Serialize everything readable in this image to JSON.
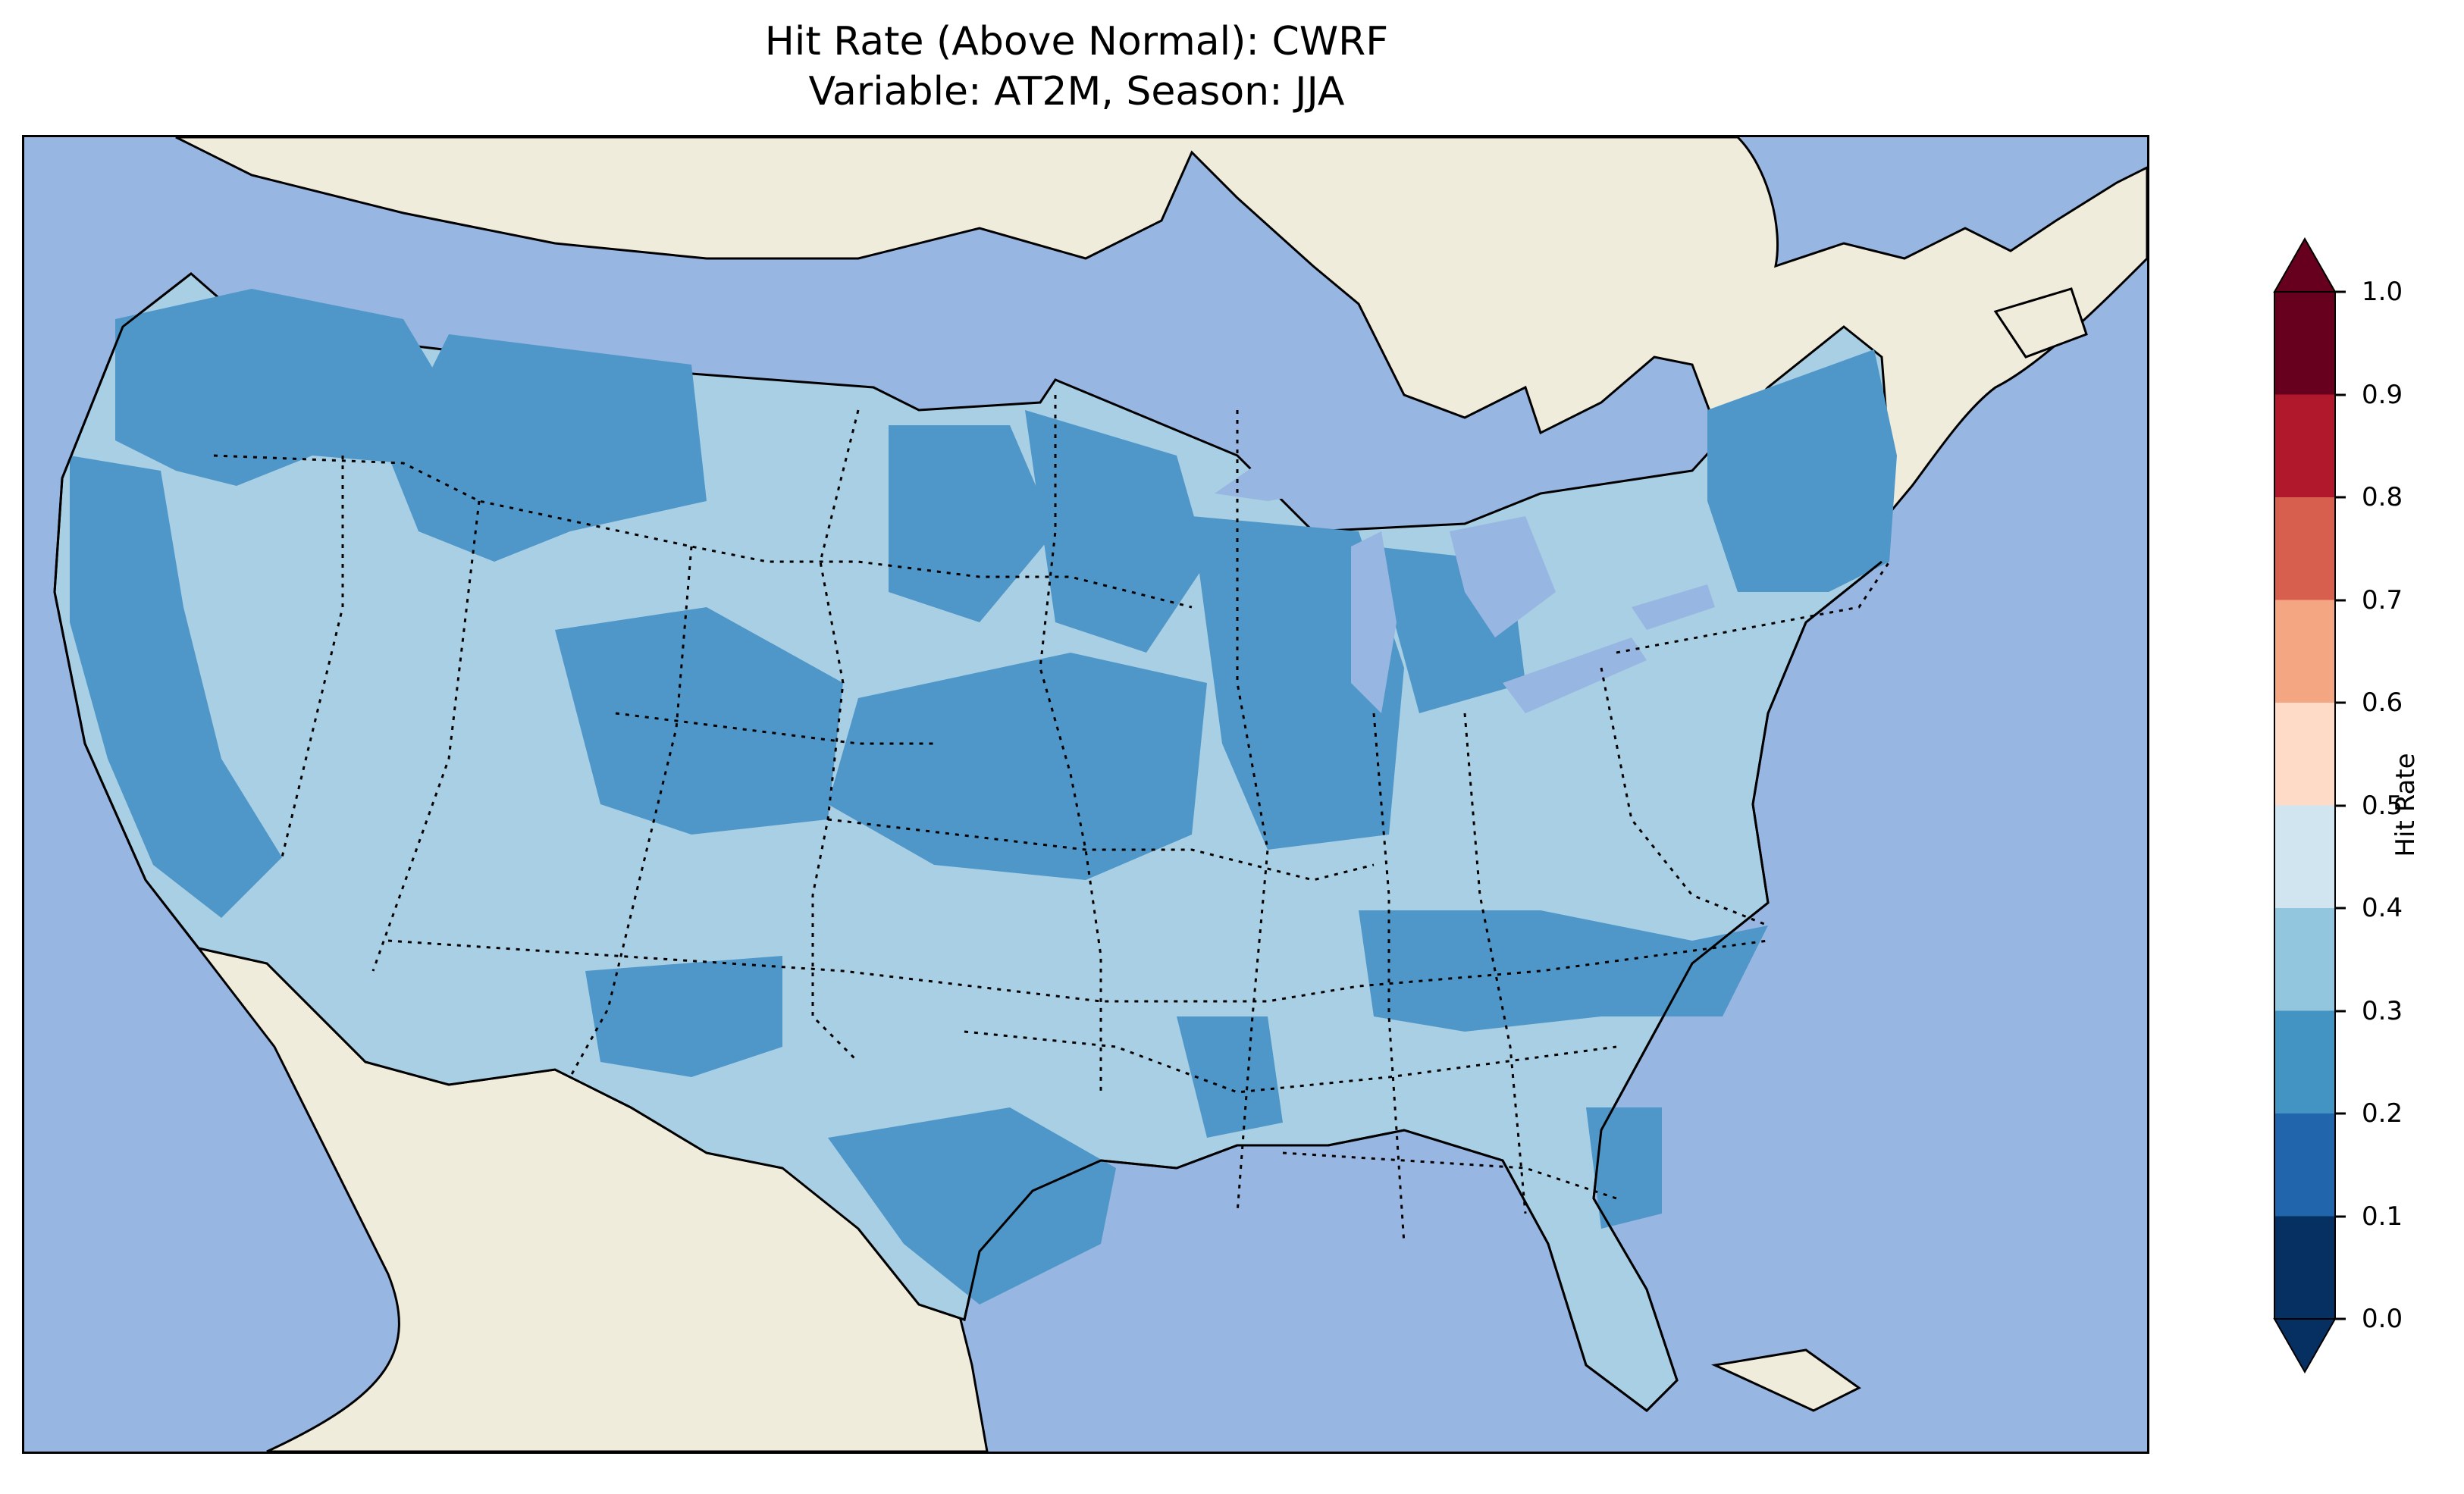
{
  "title": {
    "line1": "Hit Rate (Above Normal): CWRF",
    "line2": "Variable: AT2M, Season: JJA"
  },
  "map": {
    "region": "Contiguous United States",
    "projection": "Lambert conformal",
    "ocean_color": "#97b6e1",
    "land_color": "#efecdc",
    "border_style": "dotted state borders, solid coastlines"
  },
  "legend": {
    "label": "Hit Rate",
    "ticks": [
      "0.0",
      "0.1",
      "0.2",
      "0.3",
      "0.4",
      "0.5",
      "0.6",
      "0.7",
      "0.8",
      "0.9",
      "1.0"
    ],
    "colors": [
      "#053061",
      "#2166ac",
      "#4393c3",
      "#92c5de",
      "#d1e5f0",
      "#f7f7f7",
      "#fddbc7",
      "#f4a582",
      "#d6604d",
      "#b2182b"
    ],
    "extend": "both",
    "under_color": "#053061",
    "over_color": "#67001f"
  },
  "chart_data": {
    "type": "heatmap",
    "title": "Hit Rate (Above Normal): CWRF\nVariable: AT2M, Season: JJA",
    "colorbar_label": "Hit Rate",
    "value_range": [
      0.0,
      1.0
    ],
    "bins": [
      0.0,
      0.1,
      0.2,
      0.3,
      0.4,
      0.5,
      0.6,
      0.7,
      0.8,
      0.9,
      1.0
    ],
    "observed_value_bins": [
      "0.2-0.3",
      "0.3-0.4"
    ],
    "bin_colors": {
      "0.2-0.3": "#4f97c8",
      "0.3-0.4": "#a9cfe4"
    }
  }
}
